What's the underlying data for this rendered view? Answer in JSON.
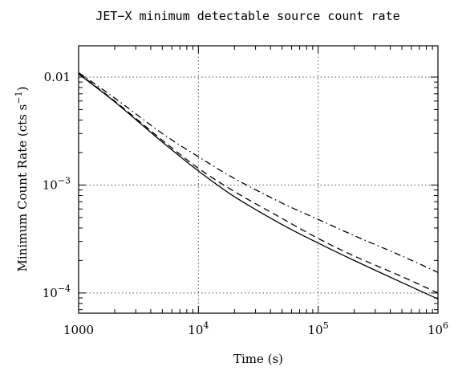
{
  "chart_data": {
    "type": "line",
    "title": "JET−X minimum detectable source count rate",
    "xlabel": "Time (s)",
    "ylabel_text": "Minimum Count Rate (cts s",
    "ylabel_sup": "−1",
    "ylabel_close": ")",
    "x_scale": "log",
    "y_scale": "log",
    "xlim": [
      1000,
      1000000
    ],
    "ylim": [
      6.5e-05,
      0.0195
    ],
    "grid": true,
    "x_ticks": [
      {
        "value": 1000,
        "base": "1000",
        "exp": ""
      },
      {
        "value": 10000,
        "base": "10",
        "exp": "4"
      },
      {
        "value": 100000,
        "base": "10",
        "exp": "5"
      },
      {
        "value": 1000000,
        "base": "10",
        "exp": "6"
      }
    ],
    "y_ticks": [
      {
        "value": 0.01,
        "base": "0.01",
        "exp": ""
      },
      {
        "value": 0.001,
        "base": "10",
        "exp": "−3"
      },
      {
        "value": 0.0001,
        "base": "10",
        "exp": "−4"
      }
    ],
    "series": [
      {
        "style": "solid",
        "x": [
          1000,
          2000,
          5000,
          10000,
          20000,
          50000,
          100000,
          200000,
          500000,
          1000000
        ],
        "y": [
          0.0107,
          0.0059,
          0.0025,
          0.00135,
          0.00078,
          0.00043,
          0.00029,
          0.0002,
          0.000125,
          8.8e-05
        ]
      },
      {
        "style": "dashed",
        "x": [
          1000,
          2000,
          5000,
          10000,
          20000,
          50000,
          100000,
          200000,
          500000,
          1000000
        ],
        "y": [
          0.0108,
          0.006,
          0.0026,
          0.00143,
          0.00087,
          0.00049,
          0.00032,
          0.00022,
          0.000142,
          0.0001
        ]
      },
      {
        "style": "dashdot",
        "x": [
          1000,
          2000,
          5000,
          10000,
          20000,
          50000,
          100000,
          200000,
          500000,
          1000000
        ],
        "y": [
          0.011,
          0.0064,
          0.003,
          0.00183,
          0.00115,
          0.00068,
          0.00048,
          0.00034,
          0.00022,
          0.000155
        ]
      }
    ]
  }
}
